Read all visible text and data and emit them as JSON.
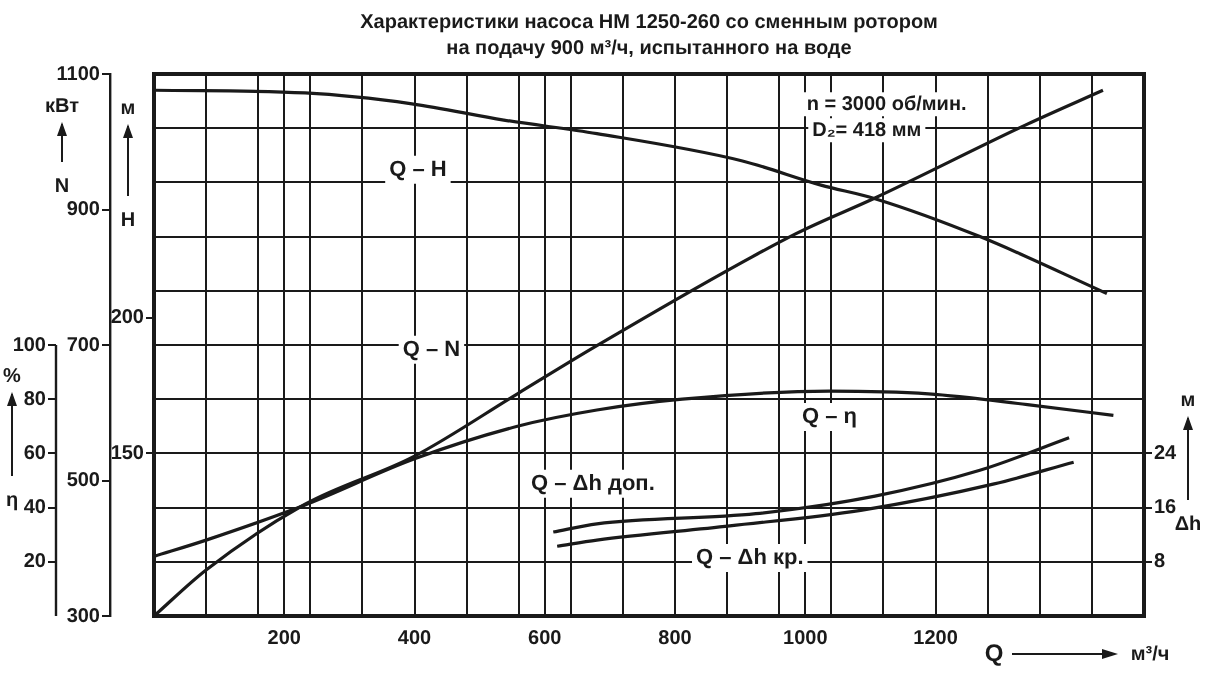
{
  "chart_data": [
    {
      "type": "line",
      "title": "Характеристики насоса НМ 1250-260 со сменным ротором",
      "subtitle": "на подачу 900 м³/ч, испытанного на воде",
      "xlabel": "Q м³/ч",
      "ylabel": "% η",
      "y2label": "кВт N",
      "y3label": "м H",
      "xlim": [
        0,
        1520
      ],
      "xticks": [
        {
          "value": 0,
          "label": null
        },
        {
          "value": 80,
          "label": null
        },
        {
          "value": 160,
          "label": null
        },
        200,
        {
          "value": 240,
          "label": null
        },
        {
          "value": 320,
          "label": null
        },
        400,
        {
          "value": 480,
          "label": null
        },
        {
          "value": 560,
          "label": null
        },
        600,
        {
          "value": 640,
          "label": null
        },
        {
          "value": 720,
          "label": null
        },
        800,
        {
          "value": 880,
          "label": null
        },
        {
          "value": 960,
          "label": null
        },
        1000,
        {
          "value": 1040,
          "label": null
        },
        {
          "value": 1120,
          "label": null
        },
        1200,
        {
          "value": 1280,
          "label": null
        },
        {
          "value": 1360,
          "label": null
        },
        {
          "value": 1440,
          "label": null
        },
        {
          "value": 1520,
          "label": null
        }
      ],
      "ylim": [
        0,
        200
      ],
      "yticks": [
        {
          "value": 0,
          "label": null
        },
        20,
        40,
        60,
        80,
        100,
        {
          "value": 120,
          "label": null
        },
        {
          "value": 140,
          "label": null
        },
        {
          "value": 160,
          "label": null
        },
        {
          "value": 180,
          "label": null
        },
        {
          "value": 200,
          "label": null
        }
      ],
      "y2lim": [
        300,
        1100
      ],
      "y2ticks": [
        300,
        500,
        700,
        900,
        1100
      ],
      "y3lim": [
        90,
        290
      ],
      "y3ticks": [
        150,
        200
      ],
      "grid": true,
      "legend": false,
      "marker": "none",
      "annotations": [
        "n = 3000 об/мин.",
        "D₂= 418 мм"
      ],
      "series": [
        {
          "name": "Q – H",
          "color": "#1a1a1a",
          "axis": "y3",
          "x": [
            0,
            232,
            396,
            537,
            680,
            902,
            1024,
            1107,
            1268,
            1463
          ],
          "values": [
            284,
            283,
            279,
            273,
            268,
            258,
            249,
            244,
            230,
            209
          ]
        },
        {
          "name": "Q – N",
          "color": "#1a1a1a",
          "axis": "y2",
          "x": [
            0,
            80,
            232,
            400,
            558,
            680,
            985,
            1107,
            1341,
            1457
          ],
          "values": [
            300,
            368,
            465,
            536,
            628,
            699,
            864,
            917,
            1026,
            1076
          ]
        },
        {
          "name": "Q – η",
          "color": "#1a1a1a",
          "x": [
            0,
            80,
            232,
            400,
            558,
            680,
            811,
            1037,
            1189,
            1341,
            1473
          ],
          "values": [
            22,
            28,
            41,
            58,
            70,
            76,
            80,
            83,
            82,
            78,
            74
          ]
        }
      ]
    },
    {
      "type": "line",
      "ylabel": "м Δh",
      "xlim": [
        0,
        1520
      ],
      "ylim": [
        0,
        80
      ],
      "yticks": [
        8,
        16,
        24
      ],
      "tick_labels": "y",
      "marker": "none",
      "series": [
        {
          "name": "Q – Δh доп.",
          "color": "#1a1a1a",
          "x": [
            613,
            680,
            924,
            1107,
            1268,
            1405
          ],
          "values": [
            12.4,
            13.6,
            15.1,
            17.7,
            21.5,
            26.3
          ]
        },
        {
          "name": "Q – Δh кр.",
          "color": "#1a1a1a",
          "x": [
            619,
            680,
            884,
            1085,
            1290,
            1412
          ],
          "values": [
            10.3,
            11.2,
            13.3,
            15.6,
            19.5,
            22.7
          ]
        }
      ]
    }
  ]
}
